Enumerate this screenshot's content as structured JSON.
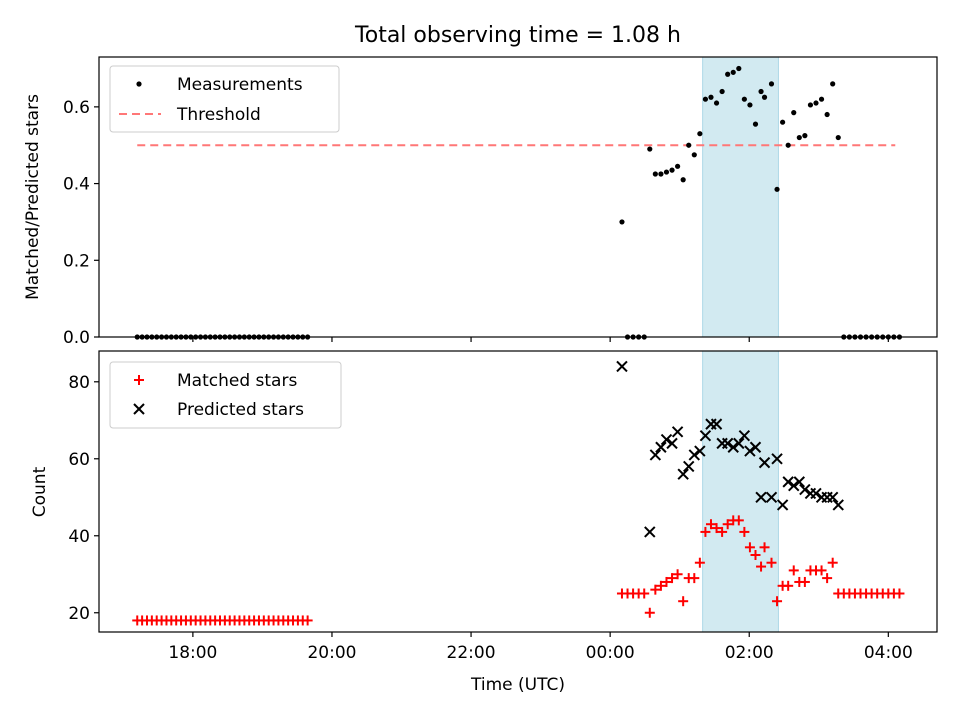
{
  "figure_title": "Total observing time = 1.08 h",
  "colors": {
    "measurement": "#000000",
    "threshold": "#ff7777",
    "highlight": "#add8e6",
    "matched": "#ff0000",
    "predicted": "#000000"
  },
  "chart_data": [
    {
      "type": "scatter",
      "title": "Total observing time = 1.08 h",
      "xlabel": "",
      "ylabel": "Matched/Predicted stars",
      "x_unit": "hours since 00:00 UTC",
      "xlim": [
        -7.35,
        4.7
      ],
      "ylim": [
        0,
        0.73
      ],
      "yticks": [
        0.0,
        0.2,
        0.4,
        0.6
      ],
      "ytick_labels": [
        "0.0",
        "0.2",
        "0.4",
        "0.6"
      ],
      "grid": false,
      "legend_position": "upper left",
      "legend": [
        {
          "label": "Measurements",
          "marker": "dot",
          "color": "#000000"
        },
        {
          "label": "Threshold",
          "marker": "dashed-line",
          "color": "#ff7777"
        }
      ],
      "highlight_span": [
        1.33,
        2.42
      ],
      "threshold": {
        "y": 0.5,
        "x_range": [
          -6.8,
          4.1
        ]
      },
      "series": [
        {
          "name": "Measurements",
          "marker": "dot",
          "points": [
            [
              -6.8,
              0
            ],
            [
              -6.73,
              0
            ],
            [
              -6.66,
              0
            ],
            [
              -6.59,
              0
            ],
            [
              -6.52,
              0
            ],
            [
              -6.45,
              0
            ],
            [
              -6.38,
              0
            ],
            [
              -6.31,
              0
            ],
            [
              -6.24,
              0
            ],
            [
              -6.17,
              0
            ],
            [
              -6.1,
              0
            ],
            [
              -6.03,
              0
            ],
            [
              -5.96,
              0
            ],
            [
              -5.89,
              0
            ],
            [
              -5.82,
              0
            ],
            [
              -5.75,
              0
            ],
            [
              -5.68,
              0
            ],
            [
              -5.61,
              0
            ],
            [
              -5.54,
              0
            ],
            [
              -5.47,
              0
            ],
            [
              -5.4,
              0
            ],
            [
              -5.33,
              0
            ],
            [
              -5.26,
              0
            ],
            [
              -5.19,
              0
            ],
            [
              -5.12,
              0
            ],
            [
              -5.05,
              0
            ],
            [
              -4.98,
              0
            ],
            [
              -4.91,
              0
            ],
            [
              -4.84,
              0
            ],
            [
              -4.77,
              0
            ],
            [
              -4.7,
              0
            ],
            [
              -4.63,
              0
            ],
            [
              -4.56,
              0
            ],
            [
              -4.49,
              0
            ],
            [
              -4.42,
              0
            ],
            [
              -4.35,
              0
            ],
            [
              0.17,
              0.3
            ],
            [
              0.25,
              0
            ],
            [
              0.33,
              0
            ],
            [
              0.41,
              0
            ],
            [
              0.49,
              0
            ],
            [
              0.57,
              0.49
            ],
            [
              0.65,
              0.425
            ],
            [
              0.73,
              0.425
            ],
            [
              0.81,
              0.43
            ],
            [
              0.89,
              0.435
            ],
            [
              0.97,
              0.445
            ],
            [
              1.05,
              0.41
            ],
            [
              1.13,
              0.5
            ],
            [
              1.21,
              0.475
            ],
            [
              1.29,
              0.53
            ],
            [
              1.37,
              0.62
            ],
            [
              1.45,
              0.625
            ],
            [
              1.53,
              0.61
            ],
            [
              1.61,
              0.64
            ],
            [
              1.69,
              0.685
            ],
            [
              1.77,
              0.69
            ],
            [
              1.85,
              0.7
            ],
            [
              1.93,
              0.62
            ],
            [
              2.01,
              0.605
            ],
            [
              2.09,
              0.555
            ],
            [
              2.17,
              0.64
            ],
            [
              2.22,
              0.625
            ],
            [
              2.32,
              0.66
            ],
            [
              2.4,
              0.385
            ],
            [
              2.48,
              0.56
            ],
            [
              2.56,
              0.5
            ],
            [
              2.64,
              0.585
            ],
            [
              2.72,
              0.52
            ],
            [
              2.8,
              0.525
            ],
            [
              2.88,
              0.605
            ],
            [
              2.96,
              0.61
            ],
            [
              3.04,
              0.62
            ],
            [
              3.12,
              0.58
            ],
            [
              3.2,
              0.66
            ],
            [
              3.28,
              0.52
            ],
            [
              3.36,
              0
            ],
            [
              3.44,
              0
            ],
            [
              3.52,
              0
            ],
            [
              3.6,
              0
            ],
            [
              3.68,
              0
            ],
            [
              3.76,
              0
            ],
            [
              3.84,
              0
            ],
            [
              3.92,
              0
            ],
            [
              4.0,
              0
            ],
            [
              4.08,
              0
            ],
            [
              4.16,
              0
            ]
          ]
        }
      ]
    },
    {
      "type": "scatter",
      "title": "",
      "xlabel": "Time (UTC)",
      "ylabel": "Count",
      "x_unit": "hours since 00:00 UTC",
      "xlim": [
        -7.35,
        4.7
      ],
      "ylim": [
        15,
        88
      ],
      "yticks": [
        20,
        40,
        60,
        80
      ],
      "ytick_labels": [
        "20",
        "40",
        "60",
        "80"
      ],
      "xticks": [
        -6,
        -4,
        -2,
        0,
        2,
        4
      ],
      "xtick_labels": [
        "18:00",
        "20:00",
        "22:00",
        "00:00",
        "02:00",
        "04:00"
      ],
      "grid": false,
      "legend_position": "upper left",
      "legend": [
        {
          "label": "Matched stars",
          "marker": "plus",
          "color": "#ff0000"
        },
        {
          "label": "Predicted stars",
          "marker": "x",
          "color": "#000000"
        }
      ],
      "highlight_span": [
        1.33,
        2.42
      ],
      "series": [
        {
          "name": "Matched stars",
          "marker": "plus",
          "points": [
            [
              -6.8,
              18
            ],
            [
              -6.73,
              18
            ],
            [
              -6.66,
              18
            ],
            [
              -6.59,
              18
            ],
            [
              -6.52,
              18
            ],
            [
              -6.45,
              18
            ],
            [
              -6.38,
              18
            ],
            [
              -6.31,
              18
            ],
            [
              -6.24,
              18
            ],
            [
              -6.17,
              18
            ],
            [
              -6.1,
              18
            ],
            [
              -6.03,
              18
            ],
            [
              -5.96,
              18
            ],
            [
              -5.89,
              18
            ],
            [
              -5.82,
              18
            ],
            [
              -5.75,
              18
            ],
            [
              -5.68,
              18
            ],
            [
              -5.61,
              18
            ],
            [
              -5.54,
              18
            ],
            [
              -5.47,
              18
            ],
            [
              -5.4,
              18
            ],
            [
              -5.33,
              18
            ],
            [
              -5.26,
              18
            ],
            [
              -5.19,
              18
            ],
            [
              -5.12,
              18
            ],
            [
              -5.05,
              18
            ],
            [
              -4.98,
              18
            ],
            [
              -4.91,
              18
            ],
            [
              -4.84,
              18
            ],
            [
              -4.77,
              18
            ],
            [
              -4.7,
              18
            ],
            [
              -4.63,
              18
            ],
            [
              -4.56,
              18
            ],
            [
              -4.49,
              18
            ],
            [
              -4.42,
              18
            ],
            [
              -4.35,
              18
            ],
            [
              0.17,
              25
            ],
            [
              0.25,
              25
            ],
            [
              0.33,
              25
            ],
            [
              0.41,
              25
            ],
            [
              0.49,
              25
            ],
            [
              0.57,
              20
            ],
            [
              0.65,
              26
            ],
            [
              0.73,
              27
            ],
            [
              0.81,
              28
            ],
            [
              0.89,
              29
            ],
            [
              0.97,
              30
            ],
            [
              1.05,
              23
            ],
            [
              1.13,
              29
            ],
            [
              1.21,
              29
            ],
            [
              1.29,
              33
            ],
            [
              1.37,
              41
            ],
            [
              1.45,
              43
            ],
            [
              1.53,
              42
            ],
            [
              1.61,
              41
            ],
            [
              1.69,
              43
            ],
            [
              1.77,
              44
            ],
            [
              1.85,
              44
            ],
            [
              1.93,
              41
            ],
            [
              2.01,
              37
            ],
            [
              2.09,
              35
            ],
            [
              2.17,
              32
            ],
            [
              2.22,
              37
            ],
            [
              2.32,
              33
            ],
            [
              2.4,
              23
            ],
            [
              2.48,
              27
            ],
            [
              2.56,
              27
            ],
            [
              2.64,
              31
            ],
            [
              2.72,
              28
            ],
            [
              2.8,
              28
            ],
            [
              2.88,
              31
            ],
            [
              2.96,
              31
            ],
            [
              3.04,
              31
            ],
            [
              3.12,
              29
            ],
            [
              3.2,
              33
            ],
            [
              3.28,
              25
            ],
            [
              3.36,
              25
            ],
            [
              3.44,
              25
            ],
            [
              3.52,
              25
            ],
            [
              3.6,
              25
            ],
            [
              3.68,
              25
            ],
            [
              3.76,
              25
            ],
            [
              3.84,
              25
            ],
            [
              3.92,
              25
            ],
            [
              4.0,
              25
            ],
            [
              4.08,
              25
            ],
            [
              4.16,
              25
            ]
          ]
        },
        {
          "name": "Predicted stars",
          "marker": "x",
          "points": [
            [
              0.17,
              84
            ],
            [
              0.57,
              41
            ],
            [
              0.65,
              61
            ],
            [
              0.73,
              63
            ],
            [
              0.81,
              65
            ],
            [
              0.89,
              64
            ],
            [
              0.97,
              67
            ],
            [
              1.05,
              56
            ],
            [
              1.13,
              58
            ],
            [
              1.21,
              61
            ],
            [
              1.29,
              62
            ],
            [
              1.37,
              66
            ],
            [
              1.45,
              69
            ],
            [
              1.53,
              69
            ],
            [
              1.61,
              64
            ],
            [
              1.69,
              64
            ],
            [
              1.77,
              63
            ],
            [
              1.85,
              64
            ],
            [
              1.93,
              66
            ],
            [
              2.01,
              62
            ],
            [
              2.09,
              63
            ],
            [
              2.17,
              50
            ],
            [
              2.22,
              59
            ],
            [
              2.32,
              50
            ],
            [
              2.4,
              60
            ],
            [
              2.48,
              48
            ],
            [
              2.56,
              54
            ],
            [
              2.64,
              53
            ],
            [
              2.72,
              54
            ],
            [
              2.8,
              52
            ],
            [
              2.88,
              51
            ],
            [
              2.96,
              51
            ],
            [
              3.04,
              50
            ],
            [
              3.12,
              50
            ],
            [
              3.2,
              50
            ],
            [
              3.28,
              48
            ]
          ]
        }
      ]
    }
  ]
}
